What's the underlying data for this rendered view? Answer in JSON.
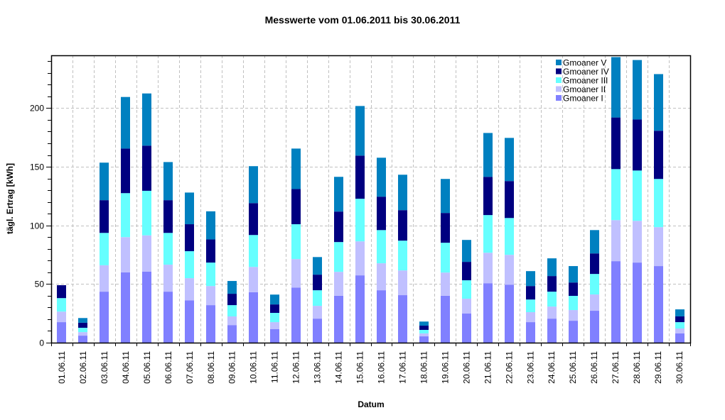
{
  "chart_data": {
    "type": "bar",
    "stacked": true,
    "title": "Messwerte vom 01.06.2011 bis 30.06.2011",
    "xlabel": "Datum",
    "ylabel": "tägl. Ertrag [kWh]",
    "ylim": [
      0,
      245
    ],
    "yticks": [
      0,
      50,
      100,
      150,
      200
    ],
    "yminor_step": 10,
    "grid": true,
    "legend_position": "top-right-inside",
    "categories": [
      "01.06.11",
      "02.06.11",
      "03.06.11",
      "04.06.11",
      "05.06.11",
      "06.06.11",
      "07.06.11",
      "08.06.11",
      "09.06.11",
      "10.06.11",
      "11.06.11",
      "12.06.11",
      "13.06.11",
      "14.06.11",
      "15.06.11",
      "16.06.11",
      "17.06.11",
      "18.06.11",
      "19.06.11",
      "20.06.11",
      "21.06.11",
      "22.06.11",
      "23.06.11",
      "24.06.11",
      "25.06.11",
      "26.06.11",
      "27.06.11",
      "28.06.11",
      "29.06.11",
      "30.06.11"
    ],
    "series": [
      {
        "name": "Gmoaner I",
        "color": "#8080FF",
        "values": [
          17.5,
          6,
          43.5,
          60,
          60.5,
          43.5,
          36,
          32,
          15,
          43,
          11.5,
          47,
          20.5,
          40,
          57.4,
          44.7,
          40.5,
          5.4,
          40,
          24.8,
          50.7,
          49.5,
          17.5,
          20.5,
          18.7,
          27.2,
          69.5,
          68.3,
          65.3,
          7.9
        ]
      },
      {
        "name": "Gmoaner II",
        "color": "#C0C0FF",
        "values": [
          9,
          3,
          22.5,
          30,
          31,
          23,
          19,
          16.3,
          7.4,
          21.6,
          6,
          24.3,
          10.9,
          20.4,
          29,
          23,
          21.1,
          2.5,
          19.8,
          12.7,
          26,
          25.4,
          8.5,
          10.3,
          9.1,
          13.9,
          35,
          35.6,
          33.2,
          4.2
        ]
      },
      {
        "name": "Gmoaner III",
        "color": "#66FFFF",
        "values": [
          11.5,
          3.7,
          27.6,
          37.5,
          38,
          27.1,
          23,
          20,
          9.6,
          27.2,
          7.9,
          29.7,
          13.3,
          25.4,
          36.3,
          28.3,
          25.4,
          3,
          25.4,
          15.7,
          32.1,
          31.4,
          10.8,
          12.7,
          12.1,
          17.5,
          43.5,
          42.9,
          41.1,
          5.4
        ]
      },
      {
        "name": "Gmoaner IV",
        "color": "#000080",
        "values": [
          11,
          4.3,
          27.9,
          38,
          38.5,
          27.9,
          23,
          19.7,
          9.7,
          27.2,
          7.2,
          30,
          13.3,
          26,
          36.8,
          28.5,
          26,
          3.6,
          25.4,
          15.7,
          32.6,
          31.5,
          11.5,
          13.3,
          11.4,
          17.5,
          44,
          43.5,
          41.1,
          4.9
        ]
      },
      {
        "name": "Gmoaner V",
        "color": "#0080C0",
        "values": [
          0,
          4,
          32,
          44,
          44.5,
          32.5,
          27,
          24,
          10.9,
          31.5,
          8.4,
          34.5,
          15,
          29.6,
          42.3,
          33.2,
          30.2,
          3.5,
          29,
          18.7,
          37.4,
          36.8,
          12.7,
          15.1,
          14,
          19.9,
          51.5,
          50.7,
          48.3,
          6
        ]
      }
    ]
  }
}
